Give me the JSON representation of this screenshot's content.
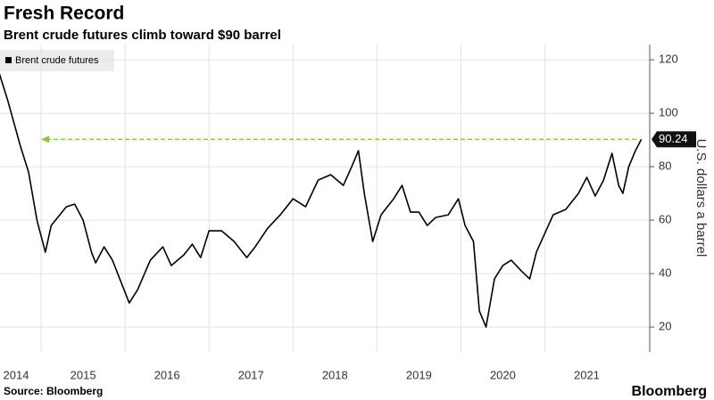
{
  "chart_data": {
    "type": "line",
    "title": "Fresh Record",
    "subtitle": "Brent crude futures climb toward $90 barrel",
    "y_label": "U.S. dollars a barrel",
    "source": "Source: Bloomberg",
    "brand": "Bloomberg",
    "x": [
      2014.5,
      2014.6,
      2014.75,
      2014.85,
      2014.95,
      2015.05,
      2015.12,
      2015.3,
      2015.4,
      2015.5,
      2015.6,
      2015.65,
      2015.75,
      2015.85,
      2015.95,
      2016.05,
      2016.15,
      2016.3,
      2016.45,
      2016.55,
      2016.7,
      2016.8,
      2016.9,
      2017.0,
      2017.15,
      2017.3,
      2017.45,
      2017.55,
      2017.7,
      2017.85,
      2018.0,
      2018.15,
      2018.3,
      2018.45,
      2018.6,
      2018.7,
      2018.78,
      2018.85,
      2018.95,
      2019.05,
      2019.2,
      2019.3,
      2019.4,
      2019.5,
      2019.6,
      2019.7,
      2019.85,
      2019.97,
      2020.05,
      2020.15,
      2020.22,
      2020.3,
      2020.4,
      2020.5,
      2020.6,
      2020.72,
      2020.82,
      2020.9,
      2021.0,
      2021.1,
      2021.25,
      2021.4,
      2021.5,
      2021.6,
      2021.7,
      2021.8,
      2021.88,
      2021.93,
      2022.0,
      2022.08,
      2022.15
    ],
    "series": [
      {
        "name": "Brent crude futures",
        "color": "#000000",
        "values": [
          115,
          105,
          88,
          78,
          60,
          48,
          58,
          65,
          66,
          60,
          48,
          44,
          50,
          45,
          37,
          29,
          34,
          45,
          50,
          43,
          47,
          51,
          46,
          56,
          56,
          52,
          46,
          50,
          57,
          62,
          68,
          65,
          75,
          77,
          73,
          80,
          86,
          70,
          52,
          62,
          68,
          73,
          63,
          63,
          58,
          61,
          62,
          68,
          58,
          52,
          26,
          20,
          38,
          43,
          45,
          41,
          38,
          48,
          55,
          62,
          64,
          70,
          76,
          69,
          75,
          85,
          73,
          70,
          80,
          86,
          90.24
        ]
      }
    ],
    "reference_color": "#8dc63f",
    "xlim": [
      2014.51,
      2022.25
    ],
    "xticks": [
      2014,
      2015,
      2016,
      2017,
      2018,
      2019,
      2020,
      2021
    ],
    "ylim": [
      10.7,
      125.7
    ],
    "yticks": [
      20,
      40,
      60,
      80,
      100,
      120
    ],
    "grid": true
  }
}
